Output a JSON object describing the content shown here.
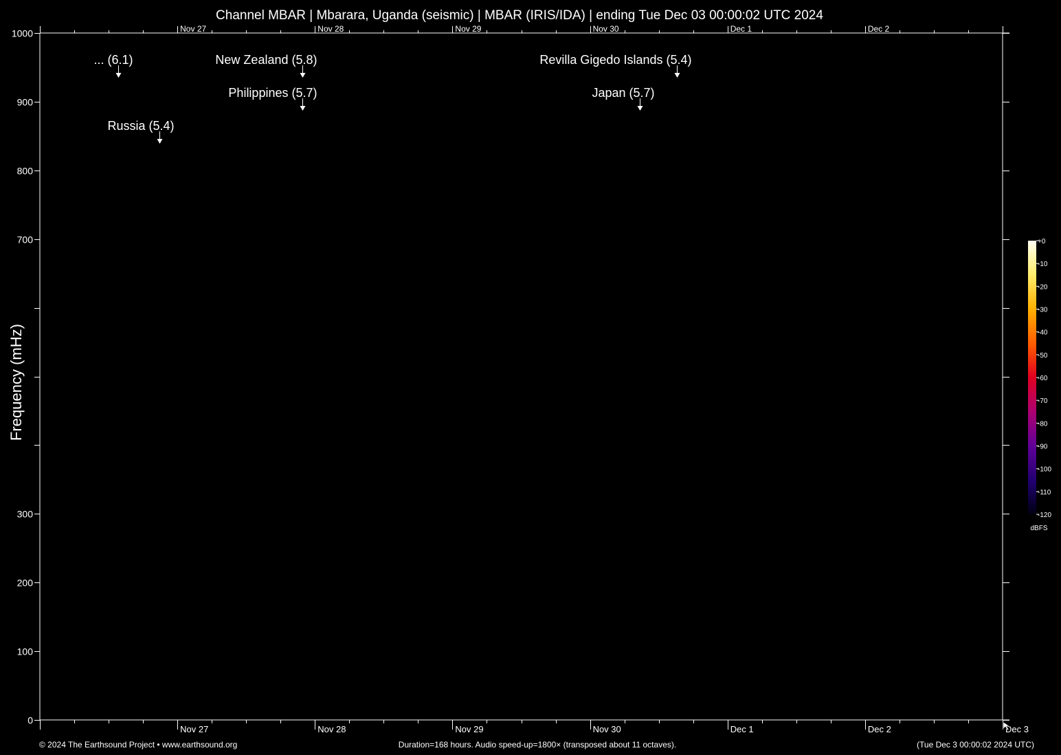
{
  "chart_data": {
    "type": "spectrogram",
    "title": "Channel MBAR | Mbarara, Uganda (seismic) | MBAR (IRIS/IDA) | ending Tue Dec 03 00:00:02 UTC 2024",
    "ylabel": "Frequency (mHz)",
    "ylim": [
      0,
      1000
    ],
    "y_ticks": [
      {
        "value": 0,
        "label": "0"
      },
      {
        "value": 100,
        "label": "100"
      },
      {
        "value": 200,
        "label": "200"
      },
      {
        "value": 300,
        "label": "300"
      },
      {
        "value": 400,
        "label": ""
      },
      {
        "value": 500,
        "label": ""
      },
      {
        "value": 600,
        "label": ""
      },
      {
        "value": 700,
        "label": "700"
      },
      {
        "value": 800,
        "label": "800"
      },
      {
        "value": 900,
        "label": "900"
      },
      {
        "value": 1000,
        "label": "1000"
      }
    ],
    "x_range_days": [
      0,
      7
    ],
    "x_day_labels": [
      {
        "day": 1,
        "top": "Nov 27",
        "bottom": "Nov 27"
      },
      {
        "day": 2,
        "top": "Nov 28",
        "bottom": "Nov 28"
      },
      {
        "day": 3,
        "top": "Nov 29",
        "bottom": "Nov 29"
      },
      {
        "day": 4,
        "top": "Nov 30",
        "bottom": "Nov 30"
      },
      {
        "day": 5,
        "top": "Dec  1",
        "bottom": "Dec  1"
      },
      {
        "day": 6,
        "top": "Dec  2",
        "bottom": "Dec  2"
      },
      {
        "day": 7,
        "top": "",
        "bottom": "Dec  3"
      }
    ],
    "events": [
      {
        "label": "... (6.1)",
        "day": 0.57,
        "row": 1
      },
      {
        "label": "Russia (5.4)",
        "day": 0.87,
        "row": 3
      },
      {
        "label": "New Zealand (5.8)",
        "day": 1.91,
        "row": 1
      },
      {
        "label": "Philippines (5.7)",
        "day": 1.91,
        "row": 2
      },
      {
        "label": "Revilla Gigedo Islands (5.4)",
        "day": 4.63,
        "row": 1
      },
      {
        "label": "Japan (5.7)",
        "day": 4.36,
        "row": 2
      }
    ],
    "colorbar": {
      "unit": "dBFS",
      "labels": [
        "+0",
        "-10",
        "-20",
        "-30",
        "-40",
        "-50",
        "-60",
        "-70",
        "-80",
        "-90",
        "-100",
        "-110",
        "-120"
      ]
    },
    "background_color": "#000000",
    "foreground_color": "#ffffff"
  },
  "footer": {
    "copyright": "© 2024 The Earthsound Project • www.earthsound.org",
    "duration": "Duration=168 hours. Audio speed-up=1800× (transposed about 11 octaves).",
    "end_time": "(Tue Dec  3 00:00:02 2024 UTC)"
  }
}
